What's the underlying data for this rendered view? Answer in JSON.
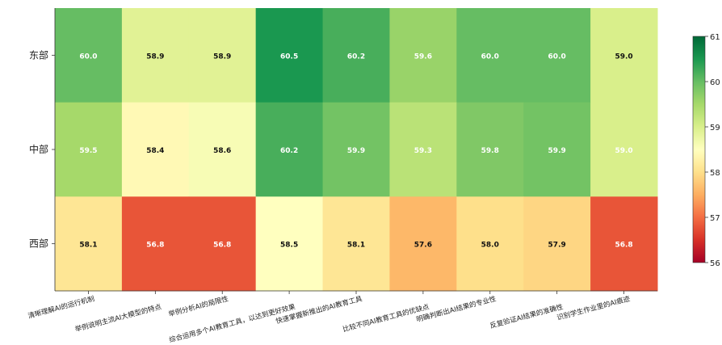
{
  "chart_data": {
    "type": "heatmap",
    "rows": [
      "东部",
      "中部",
      "西部"
    ],
    "columns": [
      "清晰理解AI的运行机制",
      "举例说明主流AI大模型的特点",
      "举例分析AI的局限性",
      "综合运用多个AI教育工具，以达到更好效果",
      "快速掌握新推出的AI教育工具",
      "比较不同AI教育工具的优缺点",
      "明确判断出AI结果的专业性",
      "反复验证AI结果的准确性",
      "识别学生作业里的AI痕迹"
    ],
    "values": [
      [
        60.0,
        58.9,
        58.9,
        60.5,
        60.2,
        59.6,
        60.0,
        60.0,
        59.0
      ],
      [
        59.5,
        58.4,
        58.6,
        60.2,
        59.9,
        59.3,
        59.8,
        59.9,
        59.0
      ],
      [
        58.1,
        56.8,
        56.8,
        58.5,
        58.1,
        57.6,
        58.0,
        57.9,
        56.8
      ]
    ],
    "value_labels": [
      [
        "60.0",
        "58.9",
        "58.9",
        "60.5",
        "60.2",
        "59.6",
        "60.0",
        "60.0",
        "59.0"
      ],
      [
        "59.5",
        "58.4",
        "58.6",
        "60.2",
        "59.9",
        "59.3",
        "59.8",
        "59.9",
        "59.0"
      ],
      [
        "58.1",
        "56.8",
        "56.8",
        "58.5",
        "58.1",
        "57.6",
        "58.0",
        "57.9",
        "56.8"
      ]
    ],
    "colormap": "RdYlGn",
    "colorbar": {
      "range": [
        56,
        61
      ],
      "ticks": [
        "56",
        "57",
        "58",
        "59",
        "60",
        "61"
      ]
    }
  }
}
